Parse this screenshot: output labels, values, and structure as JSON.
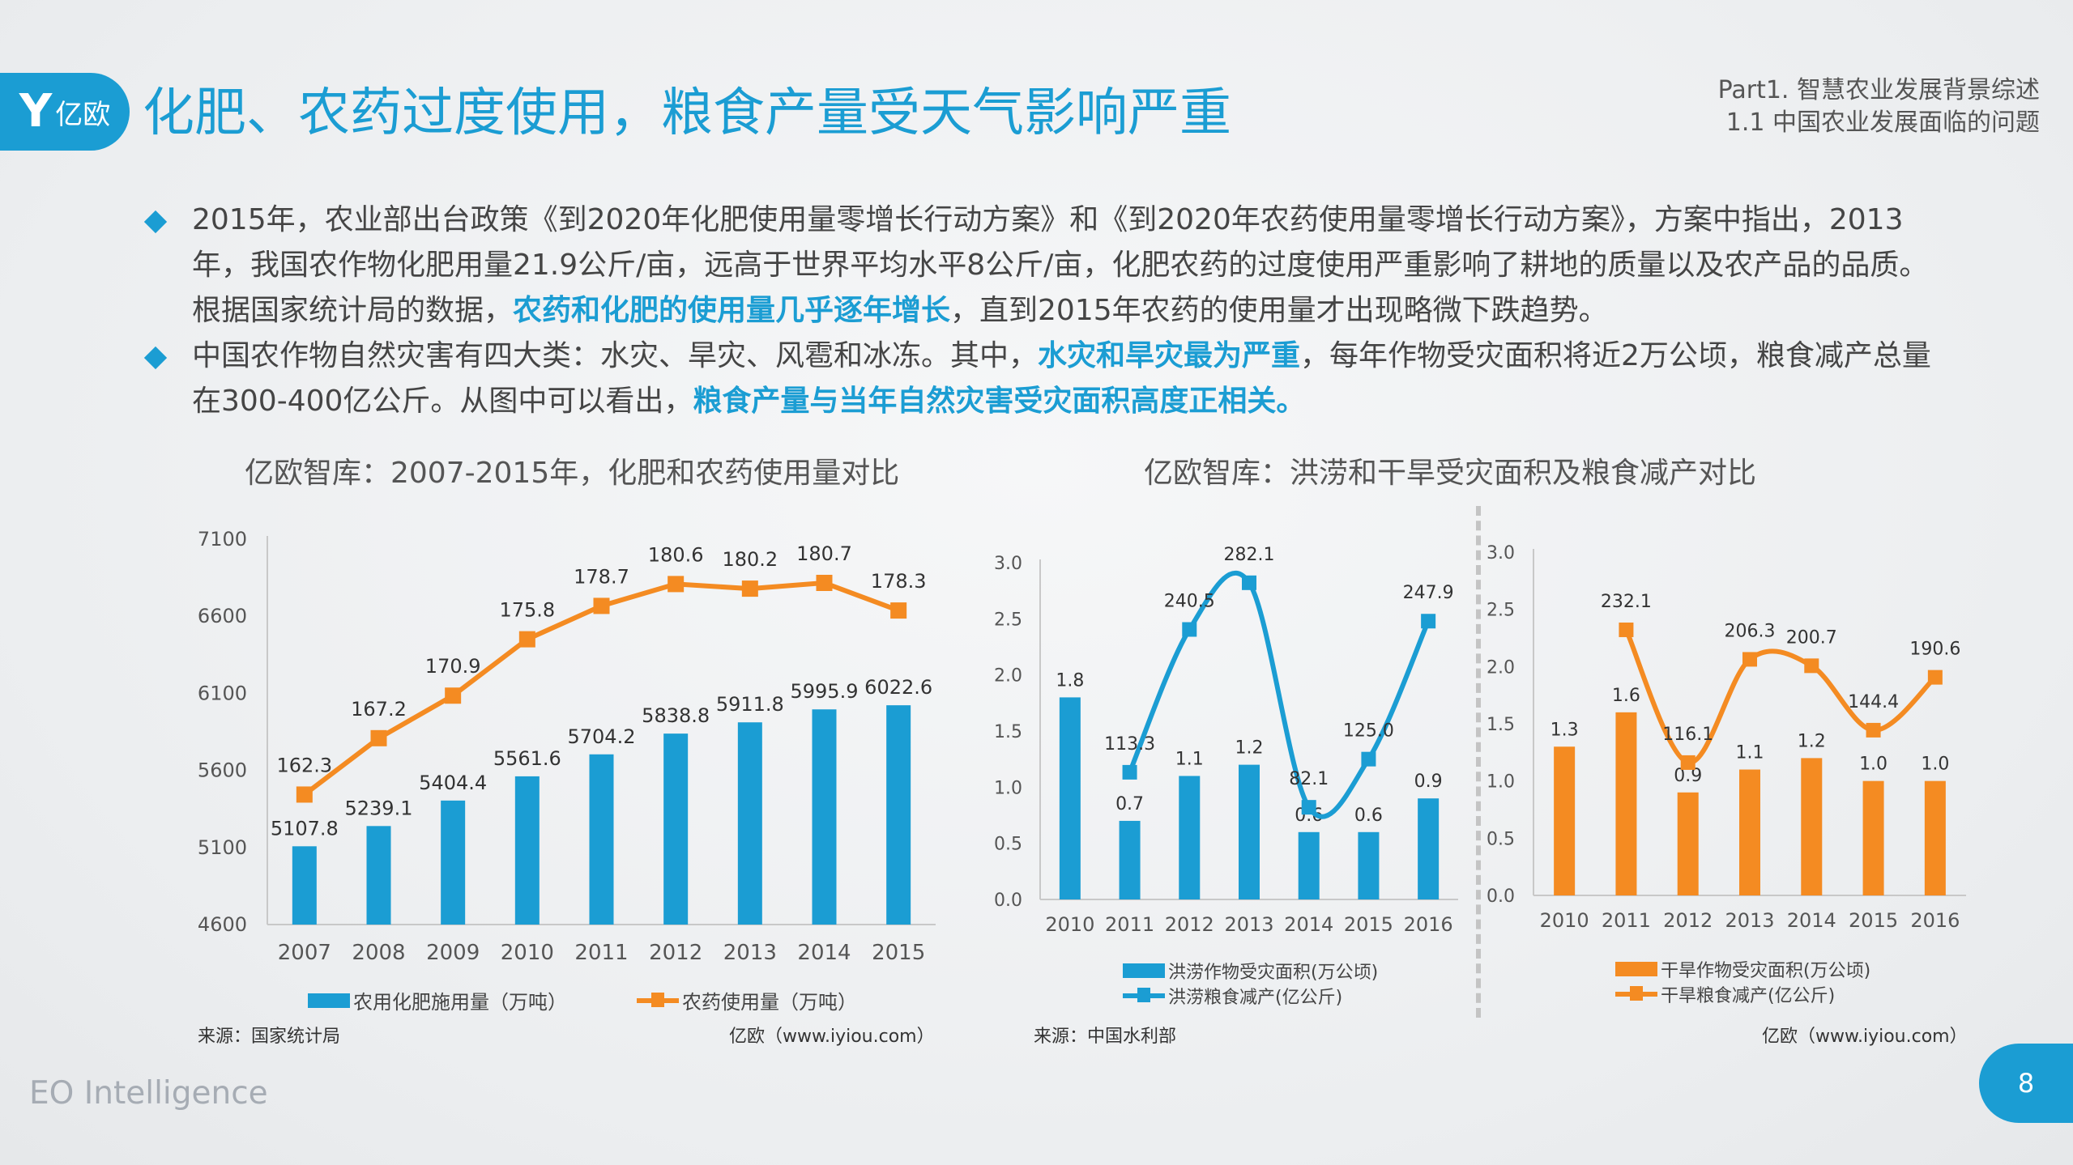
{
  "header": {
    "logo_text": "亿欧",
    "title": "化肥、农药过度使用，粮食产量受天气影响严重",
    "section_line1": "Part1. 智慧农业发展背景综述",
    "section_line2": "1.1 中国农业发展面临的问题"
  },
  "bullets": [
    {
      "parts": [
        "2015年，农业部出台政策《到2020年化肥使用量零增长行动方案》和《到2020年农药使用量零增长行动方案》，方案中指出，2013年，我国农作物化肥用量21.9公斤/亩，远高于世界平均水平8公斤/亩，化肥农药的过度使用严重影响了耕地的质量以及农产品的品质。根据国家统计局的数据，",
        "农药和化肥的使用量几乎逐年增长",
        "，直到2015年农药的使用量才出现略微下跌趋势。"
      ]
    },
    {
      "parts": [
        "中国农作物自然灾害有四大类：水灾、旱灾、风雹和冰冻。其中，",
        "水灾和旱灾最为严重",
        "，每年作物受灾面积将近2万公顷，粮食减产总量在300-400亿公斤。从图中可以看出，",
        "粮食产量与当年自然灾害受灾面积高度正相关。"
      ]
    }
  ],
  "colors": {
    "accent_blue": "#1b9dd3",
    "accent_orange": "#f48b22",
    "text": "#404040"
  },
  "disaster_title": "亿欧智库：洪涝和干旱受灾面积及粮食减产对比",
  "chart_data": [
    {
      "type": "bar+line",
      "title": "亿欧智库：2007-2015年，化肥和农药使用量对比",
      "categories": [
        "2007",
        "2008",
        "2009",
        "2010",
        "2011",
        "2012",
        "2013",
        "2014",
        "2015"
      ],
      "series": [
        {
          "name": "农用化肥施用量（万吨）",
          "type": "bar",
          "color": "#1b9dd3",
          "values": [
            5107.8,
            5239.1,
            5404.4,
            5561.6,
            5704.2,
            5838.8,
            5911.8,
            5995.9,
            6022.6
          ]
        },
        {
          "name": "农药使用量（万吨）",
          "type": "line",
          "color": "#f48b22",
          "axis": "secondary",
          "smooth": false,
          "values": [
            162.3,
            167.2,
            170.9,
            175.8,
            178.7,
            180.6,
            180.2,
            180.7,
            178.3
          ]
        }
      ],
      "ylim": [
        4600,
        7100
      ],
      "yticks": [
        4600,
        5100,
        5600,
        6100,
        6600,
        7100
      ],
      "y2lim": [
        151,
        184.5
      ],
      "secondary_axis_visible": false,
      "grid": false,
      "legend": "bottom",
      "source": "来源：国家统计局",
      "credit": "亿欧（www.iyiou.com）"
    },
    {
      "type": "bar+line",
      "categories": [
        "2010",
        "2011",
        "2012",
        "2013",
        "2014",
        "2015",
        "2016"
      ],
      "series": [
        {
          "name": "洪涝作物受灾面积(万公顷)",
          "type": "bar",
          "color": "#1b9dd3",
          "values": [
            1.8,
            0.7,
            1.1,
            1.2,
            0.6,
            0.6,
            0.9
          ]
        },
        {
          "name": "洪涝粮食减产(亿公斤)",
          "type": "line",
          "color": "#1b9dd3",
          "axis": "secondary",
          "smooth": true,
          "values": [
            null,
            113.3,
            240.5,
            282.1,
            82.1,
            125.0,
            247.9
          ]
        }
      ],
      "ylim": [
        0,
        3.0
      ],
      "yticks": [
        0,
        0.5,
        1.0,
        1.5,
        2.0,
        2.5,
        3.0
      ],
      "y2lim": [
        0,
        300
      ],
      "secondary_axis_visible": false,
      "grid": false,
      "legend": "bottom",
      "source": "来源：中国水利部"
    },
    {
      "type": "bar+line",
      "categories": [
        "2010",
        "2011",
        "2012",
        "2013",
        "2014",
        "2015",
        "2016"
      ],
      "series": [
        {
          "name": "干旱作物受灾面积(万公顷)",
          "type": "bar",
          "color": "#f48b22",
          "values": [
            1.3,
            1.6,
            0.9,
            1.1,
            1.2,
            1.0,
            1.0
          ]
        },
        {
          "name": "干旱粮食减产(亿公斤)",
          "type": "line",
          "color": "#f48b22",
          "axis": "secondary",
          "smooth": true,
          "values": [
            null,
            232.1,
            116.1,
            206.3,
            200.7,
            144.4,
            190.6
          ]
        }
      ],
      "ylim": [
        0,
        3.0
      ],
      "yticks": [
        0,
        0.5,
        1.0,
        1.5,
        2.0,
        2.5,
        3.0
      ],
      "y2lim": [
        0,
        300
      ],
      "secondary_axis_visible": false,
      "grid": false,
      "legend": "bottom",
      "credit": "亿欧（www.iyiou.com）"
    }
  ],
  "footer": {
    "brand": "EO Intelligence",
    "page_number": "8"
  }
}
